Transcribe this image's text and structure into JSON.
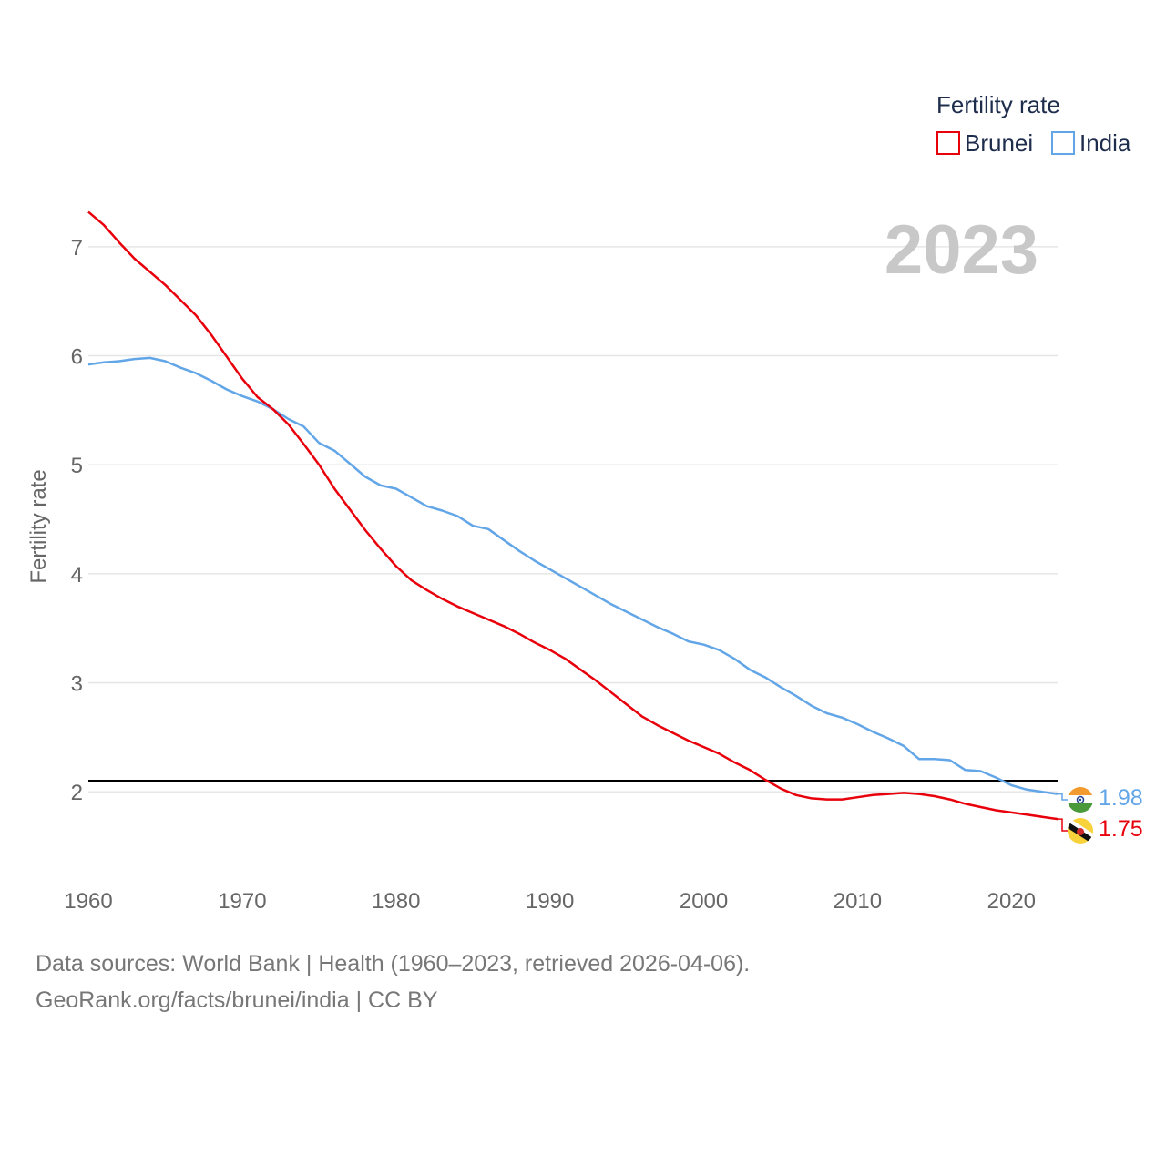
{
  "chart_data": {
    "type": "line",
    "title": "Fertility rate",
    "year_label": "2023",
    "xlabel": "",
    "ylabel": "Fertility rate",
    "xlim": [
      1960,
      2023
    ],
    "ylim": [
      1.4,
      7.35
    ],
    "x_ticks": [
      "1960",
      "1970",
      "1980",
      "1990",
      "2000",
      "2010",
      "2020"
    ],
    "y_ticks": [
      "2",
      "3",
      "4",
      "5",
      "6",
      "7"
    ],
    "reference_line": {
      "y": 2.1,
      "color": "#000000"
    },
    "legend": {
      "title": "Fertility rate",
      "position": "top-right"
    },
    "x": [
      1960,
      1961,
      1962,
      1963,
      1964,
      1965,
      1966,
      1967,
      1968,
      1969,
      1970,
      1971,
      1972,
      1973,
      1974,
      1975,
      1976,
      1977,
      1978,
      1979,
      1980,
      1981,
      1982,
      1983,
      1984,
      1985,
      1986,
      1987,
      1988,
      1989,
      1990,
      1991,
      1992,
      1993,
      1994,
      1995,
      1996,
      1997,
      1998,
      1999,
      2000,
      2001,
      2002,
      2003,
      2004,
      2005,
      2006,
      2007,
      2008,
      2009,
      2010,
      2011,
      2012,
      2013,
      2014,
      2015,
      2016,
      2017,
      2018,
      2019,
      2020,
      2021,
      2022,
      2023
    ],
    "series": [
      {
        "name": "Brunei",
        "color": "#e8000b",
        "end_label": "1.75",
        "values": [
          7.32,
          7.2,
          7.04,
          6.89,
          6.77,
          6.65,
          6.51,
          6.37,
          6.19,
          5.99,
          5.79,
          5.62,
          5.51,
          5.37,
          5.19,
          5.0,
          4.78,
          4.59,
          4.4,
          4.23,
          4.07,
          3.94,
          3.85,
          3.77,
          3.7,
          3.64,
          3.58,
          3.52,
          3.45,
          3.37,
          3.3,
          3.22,
          3.12,
          3.02,
          2.91,
          2.8,
          2.69,
          2.61,
          2.54,
          2.47,
          2.41,
          2.35,
          2.27,
          2.2,
          2.11,
          2.03,
          1.97,
          1.94,
          1.93,
          1.93,
          1.95,
          1.97,
          1.98,
          1.99,
          1.98,
          1.96,
          1.93,
          1.89,
          1.86,
          1.83,
          1.81,
          1.79,
          1.77,
          1.75
        ]
      },
      {
        "name": "India",
        "color": "#62a6e8",
        "end_label": "1.98",
        "values": [
          5.92,
          5.94,
          5.95,
          5.97,
          5.98,
          5.95,
          5.89,
          5.84,
          5.77,
          5.69,
          5.63,
          5.58,
          5.51,
          5.42,
          5.35,
          5.2,
          5.13,
          5.01,
          4.89,
          4.81,
          4.78,
          4.7,
          4.62,
          4.58,
          4.53,
          4.44,
          4.41,
          4.31,
          4.21,
          4.12,
          4.04,
          3.96,
          3.88,
          3.8,
          3.72,
          3.65,
          3.58,
          3.51,
          3.45,
          3.38,
          3.35,
          3.3,
          3.22,
          3.12,
          3.05,
          2.96,
          2.88,
          2.79,
          2.72,
          2.68,
          2.62,
          2.55,
          2.49,
          2.42,
          2.3,
          2.3,
          2.29,
          2.2,
          2.19,
          2.13,
          2.06,
          2.02,
          2.0,
          1.98
        ]
      }
    ]
  },
  "source": {
    "line1": "Data sources: World Bank | Health (1960–2023, retrieved 2026-04-06).",
    "line2": "GeoRank.org/facts/brunei/india | CC BY"
  }
}
